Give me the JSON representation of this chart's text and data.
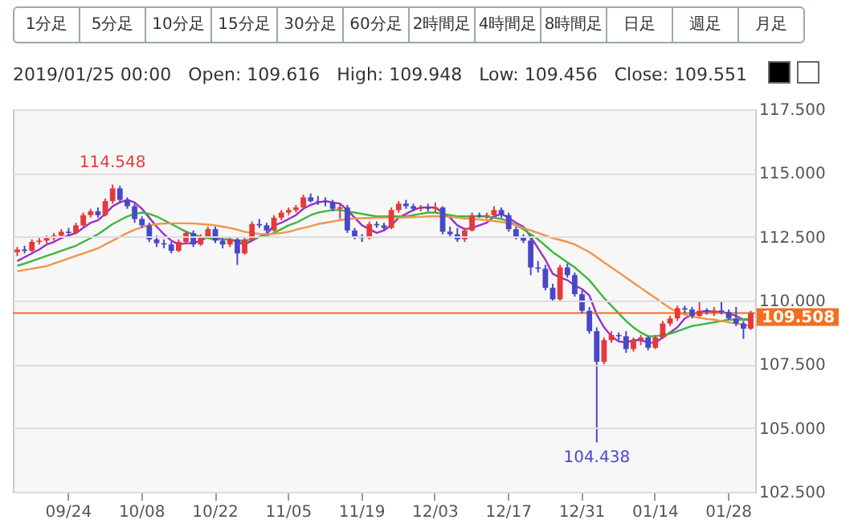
{
  "chart_data": {
    "type": "candlestick",
    "subtitle": "2019/01/25 00:00   Open: 109.616   High: 109.948   Low: 109.456   Close: 109.551",
    "annotations": [
      "1分足",
      "5分足",
      "10分足",
      "15分足",
      "30分足",
      "60分足",
      "2時間足",
      "4時間足",
      "8時間足",
      "日足",
      "週足",
      "月足",
      {
        "text": "114.548",
        "y": 114.548
      },
      {
        "text": "104.438",
        "y": 104.438
      }
    ],
    "categories": [
      null,
      null,
      null,
      null,
      null,
      null,
      null,
      "09/24",
      null,
      null,
      null,
      null,
      null,
      null,
      null,
      null,
      null,
      "10/08",
      null,
      null,
      null,
      null,
      null,
      null,
      null,
      null,
      null,
      "10/22",
      null,
      null,
      null,
      null,
      null,
      null,
      null,
      null,
      null,
      "11/05",
      null,
      null,
      null,
      null,
      null,
      null,
      null,
      null,
      null,
      "11/19",
      null,
      null,
      null,
      null,
      null,
      null,
      null,
      null,
      null,
      "12/03",
      null,
      null,
      null,
      null,
      null,
      null,
      null,
      null,
      null,
      "12/17",
      null,
      null,
      null,
      null,
      null,
      null,
      null,
      null,
      null,
      "12/31",
      null,
      null,
      null,
      null,
      null,
      null,
      null,
      null,
      null,
      "01/14",
      null,
      null,
      null,
      null,
      null,
      null,
      null,
      null,
      null,
      "01/28",
      null,
      null,
      null
    ],
    "ohlc": [
      [
        111.9,
        112.1,
        111.75,
        112.0
      ],
      [
        112.0,
        112.15,
        111.85,
        111.95
      ],
      [
        111.95,
        112.4,
        111.9,
        112.3
      ],
      [
        112.3,
        112.45,
        112.2,
        112.35
      ],
      [
        112.35,
        112.55,
        112.25,
        112.45
      ],
      [
        112.45,
        112.65,
        112.35,
        112.55
      ],
      [
        112.55,
        112.8,
        112.45,
        112.7
      ],
      [
        112.7,
        112.85,
        112.55,
        112.65
      ],
      [
        112.65,
        113.05,
        112.6,
        112.95
      ],
      [
        112.95,
        113.45,
        112.9,
        113.35
      ],
      [
        113.35,
        113.6,
        113.25,
        113.5
      ],
      [
        113.5,
        113.65,
        113.25,
        113.35
      ],
      [
        113.35,
        114.0,
        113.3,
        113.9
      ],
      [
        113.9,
        114.548,
        113.8,
        114.4
      ],
      [
        114.4,
        114.5,
        113.85,
        113.95
      ],
      [
        113.95,
        114.05,
        113.6,
        113.7
      ],
      [
        113.7,
        113.8,
        113.05,
        113.2
      ],
      [
        113.2,
        113.3,
        112.85,
        112.95
      ],
      [
        112.95,
        113.05,
        112.3,
        112.4
      ],
      [
        112.4,
        112.55,
        112.1,
        112.25
      ],
      [
        112.25,
        112.4,
        112.05,
        112.2
      ],
      [
        112.2,
        112.3,
        111.85,
        111.95
      ],
      [
        111.95,
        112.4,
        111.9,
        112.3
      ],
      [
        112.3,
        112.75,
        112.2,
        112.65
      ],
      [
        112.65,
        112.75,
        112.1,
        112.2
      ],
      [
        112.2,
        112.6,
        112.15,
        112.5
      ],
      [
        112.5,
        112.9,
        112.45,
        112.8
      ],
      [
        112.8,
        112.9,
        112.25,
        112.35
      ],
      [
        112.35,
        112.45,
        112.05,
        112.2
      ],
      [
        112.2,
        112.5,
        112.1,
        112.4
      ],
      [
        112.4,
        112.5,
        111.4,
        111.85
      ],
      [
        111.85,
        112.5,
        111.8,
        112.4
      ],
      [
        112.4,
        113.1,
        112.35,
        113.0
      ],
      [
        113.0,
        113.2,
        112.85,
        112.95
      ],
      [
        112.95,
        113.05,
        112.65,
        112.75
      ],
      [
        112.75,
        113.35,
        112.7,
        113.25
      ],
      [
        113.25,
        113.55,
        113.15,
        113.45
      ],
      [
        113.45,
        113.65,
        113.35,
        113.55
      ],
      [
        113.55,
        113.75,
        113.45,
        113.65
      ],
      [
        113.65,
        114.15,
        113.6,
        114.05
      ],
      [
        114.05,
        114.2,
        113.85,
        113.9
      ],
      [
        113.9,
        114.1,
        113.75,
        113.88
      ],
      [
        113.88,
        114.05,
        113.7,
        113.85
      ],
      [
        113.85,
        113.95,
        113.5,
        113.6
      ],
      [
        113.6,
        113.8,
        113.2,
        113.65
      ],
      [
        113.65,
        113.75,
        112.65,
        112.75
      ],
      [
        112.75,
        112.85,
        112.4,
        112.5
      ],
      [
        112.5,
        112.6,
        112.3,
        112.45
      ],
      [
        112.45,
        113.1,
        112.4,
        113.0
      ],
      [
        113.0,
        113.1,
        112.85,
        112.95
      ],
      [
        112.95,
        113.05,
        112.75,
        112.85
      ],
      [
        112.85,
        113.65,
        112.8,
        113.55
      ],
      [
        113.55,
        113.9,
        113.45,
        113.8
      ],
      [
        113.8,
        113.95,
        113.6,
        113.7
      ],
      [
        113.7,
        113.8,
        113.5,
        113.6
      ],
      [
        113.6,
        113.75,
        113.5,
        113.65
      ],
      [
        113.65,
        113.8,
        113.5,
        113.6
      ],
      [
        113.6,
        113.85,
        113.45,
        113.65
      ],
      [
        113.65,
        113.7,
        112.6,
        112.7
      ],
      [
        112.7,
        112.9,
        112.5,
        112.6
      ],
      [
        112.6,
        112.85,
        112.3,
        112.4
      ],
      [
        112.4,
        112.85,
        112.3,
        112.75
      ],
      [
        112.75,
        113.45,
        112.7,
        113.35
      ],
      [
        113.35,
        113.45,
        113.25,
        113.3
      ],
      [
        113.3,
        113.45,
        113.2,
        113.35
      ],
      [
        113.35,
        113.7,
        113.3,
        113.55
      ],
      [
        113.55,
        113.65,
        113.25,
        113.35
      ],
      [
        113.35,
        113.45,
        112.7,
        112.8
      ],
      [
        112.8,
        112.9,
        112.4,
        112.5
      ],
      [
        112.5,
        112.6,
        112.25,
        112.35
      ],
      [
        112.35,
        112.45,
        111.0,
        111.3
      ],
      [
        111.3,
        111.55,
        111.1,
        111.25
      ],
      [
        111.25,
        111.4,
        110.4,
        110.5
      ],
      [
        110.5,
        110.65,
        109.95,
        110.05
      ],
      [
        110.05,
        111.4,
        110.0,
        111.3
      ],
      [
        111.3,
        111.45,
        110.9,
        111.0
      ],
      [
        111.0,
        111.1,
        110.15,
        110.25
      ],
      [
        110.25,
        110.4,
        109.5,
        109.6
      ],
      [
        109.6,
        109.75,
        108.7,
        108.8
      ],
      [
        108.8,
        108.95,
        104.438,
        107.6
      ],
      [
        107.6,
        108.55,
        107.5,
        108.45
      ],
      [
        108.45,
        108.8,
        108.35,
        108.65
      ],
      [
        108.65,
        108.75,
        108.45,
        108.6
      ],
      [
        108.6,
        108.8,
        107.95,
        108.1
      ],
      [
        108.1,
        108.55,
        108.0,
        108.45
      ],
      [
        108.45,
        108.65,
        108.25,
        108.55
      ],
      [
        108.55,
        108.6,
        108.05,
        108.15
      ],
      [
        108.15,
        108.65,
        108.1,
        108.55
      ],
      [
        108.55,
        109.2,
        108.5,
        109.1
      ],
      [
        109.1,
        109.4,
        109.0,
        109.3
      ],
      [
        109.3,
        109.8,
        109.2,
        109.7
      ],
      [
        109.7,
        109.8,
        109.5,
        109.65
      ],
      [
        109.65,
        109.75,
        109.3,
        109.4
      ],
      [
        109.4,
        109.95,
        109.35,
        109.6
      ],
      [
        109.6,
        109.7,
        109.45,
        109.55
      ],
      [
        109.55,
        109.75,
        109.4,
        109.616
      ],
      [
        109.616,
        109.948,
        109.456,
        109.551
      ],
      [
        109.55,
        109.65,
        109.25,
        109.3
      ],
      [
        109.3,
        109.75,
        109.0,
        109.1
      ],
      [
        109.1,
        109.2,
        108.5,
        108.9
      ],
      [
        108.9,
        109.6,
        108.85,
        109.5
      ]
    ],
    "colors": [
      "#e53a3a",
      "#4848c8",
      "#e53a3a",
      "#e53a3a",
      "#e53a3a",
      "#e53a3a",
      "#e53a3a",
      "#4848c8",
      "#e53a3a",
      "#e53a3a",
      "#e53a3a",
      "#4848c8",
      "#e53a3a",
      "#e53a3a",
      "#4848c8",
      "#4848c8",
      "#4848c8",
      "#4848c8",
      "#4848c8",
      "#4848c8",
      "#4848c8",
      "#4848c8",
      "#e53a3a",
      "#e53a3a",
      "#4848c8",
      "#e53a3a",
      "#e53a3a",
      "#4848c8",
      "#4848c8",
      "#e53a3a",
      "#4848c8",
      "#e53a3a",
      "#e53a3a",
      "#4848c8",
      "#4848c8",
      "#e53a3a",
      "#e53a3a",
      "#e53a3a",
      "#e53a3a",
      "#e53a3a",
      "#4848c8",
      "#4848c8",
      "#4848c8",
      "#4848c8",
      "#e53a3a",
      "#4848c8",
      "#4848c8",
      "#4848c8",
      "#e53a3a",
      "#4848c8",
      "#4848c8",
      "#e53a3a",
      "#e53a3a",
      "#4848c8",
      "#4848c8",
      "#e53a3a",
      "#4848c8",
      "#e53a3a",
      "#4848c8",
      "#4848c8",
      "#4848c8",
      "#e53a3a",
      "#e53a3a",
      "#4848c8",
      "#e53a3a",
      "#e53a3a",
      "#4848c8",
      "#4848c8",
      "#4848c8",
      "#4848c8",
      "#4848c8",
      "#4848c8",
      "#4848c8",
      "#4848c8",
      "#e53a3a",
      "#4848c8",
      "#4848c8",
      "#4848c8",
      "#4848c8",
      "#4848c8",
      "#e53a3a",
      "#e53a3a",
      "#4848c8",
      "#4848c8",
      "#e53a3a",
      "#e53a3a",
      "#4848c8",
      "#e53a3a",
      "#e53a3a",
      "#e53a3a",
      "#e53a3a",
      "#4848c8",
      "#4848c8",
      "#e53a3a",
      "#4848c8",
      "#e53a3a",
      "#4848c8",
      "#4848c8",
      "#4848c8",
      "#4848c8",
      "#e53a3a"
    ],
    "series": [
      {
        "type": "line",
        "color": "#9b30c8",
        "values": [
          111.55,
          111.7,
          111.85,
          112.0,
          112.2,
          112.3,
          112.45,
          112.55,
          112.65,
          112.85,
          113.05,
          113.15,
          113.4,
          113.7,
          113.85,
          113.95,
          113.85,
          113.6,
          113.25,
          112.9,
          112.6,
          112.35,
          112.2,
          112.25,
          112.25,
          112.35,
          112.5,
          112.45,
          112.4,
          112.4,
          112.3,
          112.2,
          112.35,
          112.5,
          112.6,
          112.95,
          113.05,
          113.2,
          113.35,
          113.6,
          113.75,
          113.85,
          113.9,
          113.85,
          113.8,
          113.55,
          113.25,
          112.95,
          112.8,
          112.65,
          112.75,
          112.95,
          113.25,
          113.4,
          113.55,
          113.65,
          113.65,
          113.65,
          113.45,
          113.25,
          112.95,
          112.8,
          112.85,
          112.95,
          113.05,
          113.3,
          113.4,
          113.25,
          113.05,
          112.9,
          112.5,
          112.05,
          111.6,
          111.05,
          110.9,
          110.8,
          110.6,
          110.45,
          110.2,
          109.45,
          108.95,
          108.6,
          108.4,
          108.35,
          108.45,
          108.45,
          108.35,
          108.35,
          108.55,
          108.75,
          108.95,
          109.3,
          109.45,
          109.55,
          109.6,
          109.55,
          109.55,
          109.5,
          109.4,
          109.25,
          109.25
        ]
      },
      {
        "type": "line",
        "color": "#3cb83c",
        "values": [
          111.37,
          111.45,
          111.55,
          111.65,
          111.75,
          111.85,
          111.95,
          112.05,
          112.15,
          112.3,
          112.45,
          112.6,
          112.8,
          113.0,
          113.15,
          113.3,
          113.4,
          113.45,
          113.4,
          113.3,
          113.15,
          113.0,
          112.85,
          112.7,
          112.6,
          112.5,
          112.45,
          112.4,
          112.4,
          112.4,
          112.35,
          112.35,
          112.4,
          112.5,
          112.55,
          112.65,
          112.8,
          112.95,
          113.05,
          113.2,
          113.35,
          113.45,
          113.5,
          113.55,
          113.55,
          113.5,
          113.45,
          113.4,
          113.35,
          113.3,
          113.3,
          113.3,
          113.3,
          113.3,
          113.35,
          113.4,
          113.45,
          113.45,
          113.4,
          113.35,
          113.3,
          113.3,
          113.3,
          113.3,
          113.3,
          113.25,
          113.2,
          113.1,
          112.95,
          112.8,
          112.6,
          112.4,
          112.15,
          111.9,
          111.7,
          111.5,
          111.3,
          111.05,
          110.8,
          110.45,
          110.1,
          109.8,
          109.5,
          109.2,
          108.95,
          108.75,
          108.6,
          108.6,
          108.65,
          108.7,
          108.8,
          108.9,
          109.0,
          109.05,
          109.1,
          109.15,
          109.2,
          109.25,
          109.25,
          109.25,
          109.3
        ]
      },
      {
        "type": "line",
        "color": "#f0954a",
        "values": [
          111.15,
          111.2,
          111.25,
          111.3,
          111.35,
          111.45,
          111.55,
          111.65,
          111.75,
          111.85,
          111.95,
          112.05,
          112.2,
          112.35,
          112.5,
          112.65,
          112.78,
          112.88,
          112.95,
          113.0,
          113.02,
          113.03,
          113.03,
          113.03,
          113.02,
          113.0,
          112.98,
          112.95,
          112.9,
          112.85,
          112.78,
          112.7,
          112.65,
          112.62,
          112.6,
          112.62,
          112.65,
          112.7,
          112.78,
          112.85,
          112.92,
          113.0,
          113.05,
          113.1,
          113.15,
          113.2,
          113.22,
          113.23,
          113.24,
          113.25,
          113.25,
          113.25,
          113.25,
          113.26,
          113.27,
          113.28,
          113.3,
          113.3,
          113.3,
          113.28,
          113.25,
          113.22,
          113.2,
          113.18,
          113.15,
          113.12,
          113.08,
          113.02,
          112.95,
          112.85,
          112.75,
          112.65,
          112.55,
          112.45,
          112.38,
          112.3,
          112.2,
          112.05,
          111.9,
          111.7,
          111.5,
          111.3,
          111.1,
          110.9,
          110.7,
          110.5,
          110.3,
          110.1,
          109.9,
          109.7,
          109.55,
          109.45,
          109.38,
          109.32,
          109.28,
          109.25,
          109.2,
          109.15,
          109.1,
          109.05,
          109.0
        ]
      }
    ],
    "ref_lines": [
      {
        "axis": "y",
        "value": 109.508,
        "label": "109.508",
        "color": "#f07020"
      }
    ],
    "ylim": [
      102.5,
      117.5
    ],
    "yticks": [
      {
        "value": 102.5,
        "label": "102.500"
      },
      {
        "value": 105,
        "label": "105.000"
      },
      {
        "value": 107.5,
        "label": "107.500"
      },
      {
        "value": 110,
        "label": "110.000"
      },
      {
        "value": 112.5,
        "label": "112.500"
      },
      {
        "value": 115,
        "label": "115.000"
      },
      {
        "value": 117.5,
        "label": "117.500"
      }
    ],
    "grid": "y"
  }
}
